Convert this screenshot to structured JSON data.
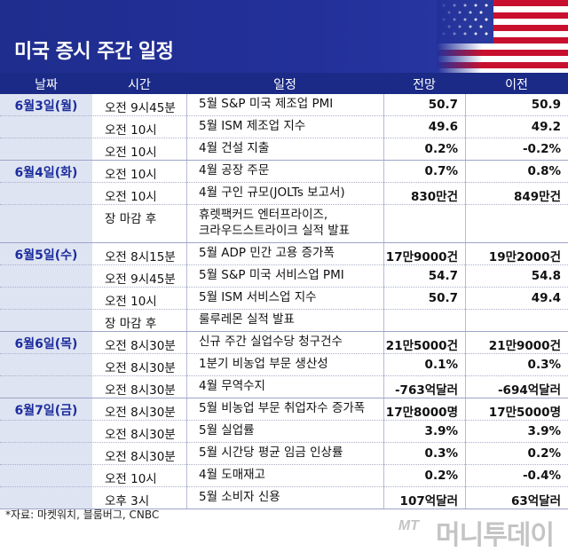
{
  "title": "미국 증시 주간 일정",
  "columns": {
    "date": "날짜",
    "time": "시간",
    "event": "일정",
    "forecast": "전망",
    "previous": "이전"
  },
  "days": [
    {
      "label": "6월3일(월)",
      "rows": [
        {
          "time": "오전 9시45분",
          "event": "5월 S&P 미국 제조업 PMI",
          "forecast": "50.7",
          "previous": "50.9"
        },
        {
          "time": "오전 10시",
          "event": "5월 ISM 제조업 지수",
          "forecast": "49.6",
          "previous": "49.2"
        },
        {
          "time": "오전 10시",
          "event": "4월 건설 지출",
          "forecast": "0.2%",
          "previous": "-0.2%"
        }
      ]
    },
    {
      "label": "6월4일(화)",
      "rows": [
        {
          "time": "오전 10시",
          "event": "4월 공장 주문",
          "forecast": "0.7%",
          "previous": "0.8%"
        },
        {
          "time": "오전 10시",
          "event": "4월 구인 규모(JOLTs 보고서)",
          "forecast": "830만건",
          "previous": "849만건"
        },
        {
          "time": "장 마감 후",
          "event": "휴렛팩커드 엔터프라이즈,",
          "event2": "크라우드스트라이크 실적 발표",
          "forecast": "",
          "previous": ""
        }
      ]
    },
    {
      "label": "6월5일(수)",
      "rows": [
        {
          "time": "오전 8시15분",
          "event": "5월 ADP 민간 고용 증가폭",
          "forecast": "17만9000건",
          "previous": "19만2000건"
        },
        {
          "time": "오전 9시45분",
          "event": "5월 S&P 미국 서비스업 PMI",
          "forecast": "54.7",
          "previous": "54.8"
        },
        {
          "time": "오전 10시",
          "event": "5월 ISM 서비스업 지수",
          "forecast": "50.7",
          "previous": "49.4"
        },
        {
          "time": "장 마감 후",
          "event": "룰루레몬 실적 발표",
          "forecast": "",
          "previous": ""
        }
      ]
    },
    {
      "label": "6월6일(목)",
      "rows": [
        {
          "time": "오전 8시30분",
          "event": "신규 주간 실업수당 청구건수",
          "forecast": "21만5000건",
          "previous": "21만9000건"
        },
        {
          "time": "오전 8시30분",
          "event": "1분기 비농업 부문 생산성",
          "forecast": "0.1%",
          "previous": "0.3%"
        },
        {
          "time": "오전 8시30분",
          "event": "4월 무역수지",
          "forecast": "-763억달러",
          "previous": "-694억달러"
        }
      ]
    },
    {
      "label": "6월7일(금)",
      "rows": [
        {
          "time": "오전 8시30분",
          "event": "5월 비농업 부문 취업자수 증가폭",
          "forecast": "17만8000명",
          "previous": "17만5000명"
        },
        {
          "time": "오전 8시30분",
          "event": "5월 실업률",
          "forecast": "3.9%",
          "previous": "3.9%"
        },
        {
          "time": "오전 8시30분",
          "event": "5월 시간당 평균 임금 인상률",
          "forecast": "0.3%",
          "previous": "0.2%"
        },
        {
          "time": "오전 10시",
          "event": "4월 도매재고",
          "forecast": "0.2%",
          "previous": "-0.4%"
        },
        {
          "time": "오후 3시",
          "event": "5월 소비자 신용",
          "forecast": "107억달러",
          "previous": "63억달러"
        }
      ]
    }
  ],
  "source": "*자료: 마켓워치, 블룸버그, CNBC",
  "logo": {
    "mark": "MT",
    "name": "머니투데이"
  },
  "colors": {
    "header": "#23309a",
    "table_head": "#1b2a86",
    "day_bg": "#dfe4f2",
    "day_text": "#1c2d9c"
  }
}
